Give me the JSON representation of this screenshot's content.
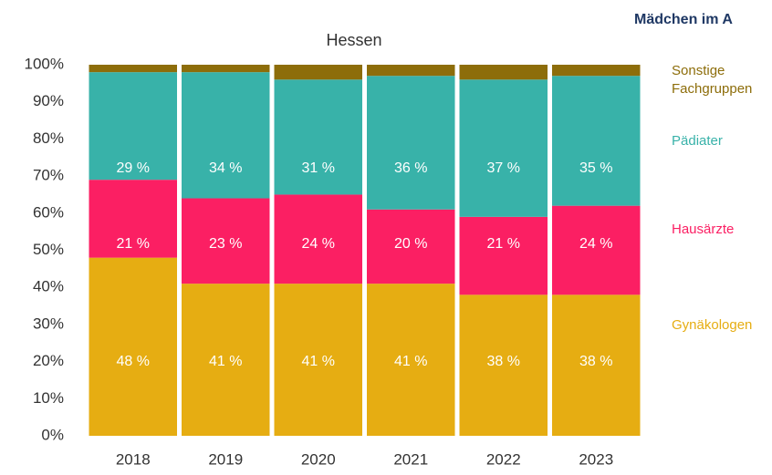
{
  "chart_data": {
    "type": "stacked_bar",
    "heading": "Mädchen im A",
    "title": "Hessen",
    "categories": [
      "2018",
      "2019",
      "2020",
      "2021",
      "2022",
      "2023"
    ],
    "series": [
      {
        "name": "Gynäkologen",
        "color": "#e6ad12",
        "values": [
          48,
          41,
          41,
          41,
          38,
          38
        ],
        "value_labels": [
          "48 %",
          "41 %",
          "41 %",
          "41 %",
          "38 %",
          "38 %"
        ]
      },
      {
        "name": "Hausärzte",
        "color": "#fb1f63",
        "values": [
          21,
          23,
          24,
          20,
          21,
          24
        ],
        "value_labels": [
          "21 %",
          "23 %",
          "24 %",
          "20 %",
          "21 %",
          "24 %"
        ]
      },
      {
        "name": "Pädiater",
        "color": "#38b2a9",
        "values": [
          29,
          34,
          31,
          36,
          37,
          35
        ],
        "value_labels": [
          "29 %",
          "34 %",
          "31 %",
          "36 %",
          "37 %",
          "35 %"
        ]
      },
      {
        "name": "Sonstige Fachgruppen",
        "color": "#8d6d0a",
        "values": [
          2,
          2,
          4,
          3,
          4,
          3
        ]
      }
    ],
    "ylim": [
      0,
      100
    ],
    "yticks": [
      {
        "value": 0,
        "label": "0%"
      },
      {
        "value": 10,
        "label": "10%"
      },
      {
        "value": 20,
        "label": "20%"
      },
      {
        "value": 30,
        "label": "30%"
      },
      {
        "value": 40,
        "label": "40%"
      },
      {
        "value": 50,
        "label": "50%"
      },
      {
        "value": 60,
        "label": "60%"
      },
      {
        "value": 70,
        "label": "70%"
      },
      {
        "value": 80,
        "label": "80%"
      },
      {
        "value": 90,
        "label": "90%"
      },
      {
        "value": 100,
        "label": "100%"
      }
    ],
    "grid": false,
    "legend": "right"
  }
}
